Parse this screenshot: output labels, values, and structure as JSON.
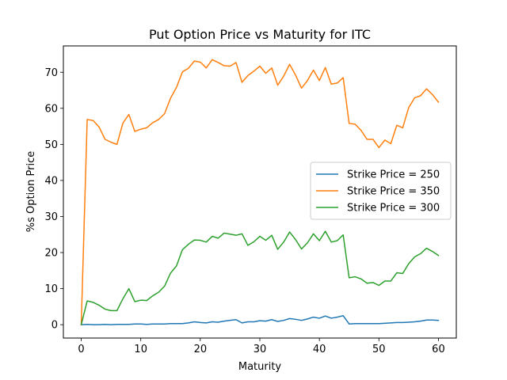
{
  "chart_data": {
    "type": "line",
    "title": "Put Option Price vs Maturity for ITC",
    "xlabel": "Maturity",
    "ylabel": "%s Option Price",
    "xlim": [
      -3,
      63
    ],
    "ylim": [
      -3.7,
      77.3
    ],
    "xticks": [
      0,
      10,
      20,
      30,
      40,
      50,
      60
    ],
    "yticks": [
      0,
      10,
      20,
      30,
      40,
      50,
      60,
      70
    ],
    "grid": false,
    "legend_position": "center-right",
    "x": [
      0,
      1,
      2,
      3,
      4,
      5,
      6,
      7,
      8,
      9,
      10,
      11,
      12,
      13,
      14,
      15,
      16,
      17,
      18,
      19,
      20,
      21,
      22,
      23,
      24,
      25,
      26,
      27,
      28,
      29,
      30,
      31,
      32,
      33,
      34,
      35,
      36,
      37,
      38,
      39,
      40,
      41,
      42,
      43,
      44,
      45,
      46,
      47,
      48,
      49,
      50,
      51,
      52,
      53,
      54,
      55,
      56,
      57,
      58,
      59,
      60
    ],
    "series": [
      {
        "name": "Strike Price = 250",
        "color": "#1f77b4",
        "values": [
          0,
          0.1,
          0,
          0,
          0.1,
          0,
          0.1,
          0.1,
          0.1,
          0.2,
          0.2,
          0.1,
          0.2,
          0.2,
          0.2,
          0.3,
          0.3,
          0.3,
          0.5,
          0.8,
          0.6,
          0.5,
          0.8,
          0.7,
          1.0,
          1.2,
          1.4,
          0.5,
          0.8,
          0.8,
          1.1,
          1.0,
          1.4,
          0.9,
          1.2,
          1.7,
          1.5,
          1.2,
          1.6,
          2.1,
          1.8,
          2.4,
          1.8,
          2.1,
          2.5,
          0.2,
          0.3,
          0.3,
          0.3,
          0.3,
          0.3,
          0.4,
          0.5,
          0.6,
          0.6,
          0.7,
          0.8,
          1.0,
          1.3,
          1.3,
          1.2
        ]
      },
      {
        "name": "Strike Price = 350",
        "color": "#ff7f0e",
        "values": [
          0,
          56.9,
          56.6,
          54.8,
          51.4,
          50.6,
          50.0,
          55.9,
          58.3,
          53.6,
          54.2,
          54.6,
          56.0,
          56.9,
          58.5,
          62.8,
          65.8,
          70.1,
          71.1,
          73.1,
          72.8,
          71.2,
          73.5,
          72.7,
          71.8,
          71.7,
          72.7,
          67.2,
          69.1,
          70.3,
          71.7,
          69.7,
          71.2,
          66.4,
          68.9,
          72.2,
          69.2,
          65.6,
          67.7,
          70.6,
          67.7,
          71.3,
          66.7,
          67.0,
          68.5,
          55.8,
          55.6,
          53.9,
          51.4,
          51.4,
          49.1,
          51.2,
          50.2,
          55.3,
          54.6,
          60.2,
          62.9,
          63.5,
          65.4,
          63.8,
          61.7
        ]
      },
      {
        "name": "Strike Price = 300",
        "color": "#2ca02c",
        "values": [
          0,
          6.6,
          6.2,
          5.4,
          4.3,
          3.9,
          3.9,
          7.2,
          10.0,
          6.4,
          6.8,
          6.7,
          8.0,
          9.0,
          10.7,
          14.3,
          16.3,
          20.8,
          22.3,
          23.5,
          23.4,
          22.9,
          24.5,
          24.0,
          25.4,
          25.1,
          24.8,
          25.2,
          22.0,
          23.0,
          24.5,
          23.4,
          24.8,
          20.9,
          22.9,
          25.7,
          23.6,
          21.0,
          22.7,
          25.2,
          23.3,
          25.9,
          22.9,
          23.3,
          24.9,
          13.0,
          13.3,
          12.7,
          11.5,
          11.7,
          10.9,
          12.1,
          12.1,
          14.4,
          14.2,
          16.9,
          18.8,
          19.7,
          21.2,
          20.3,
          19.2
        ]
      }
    ]
  }
}
